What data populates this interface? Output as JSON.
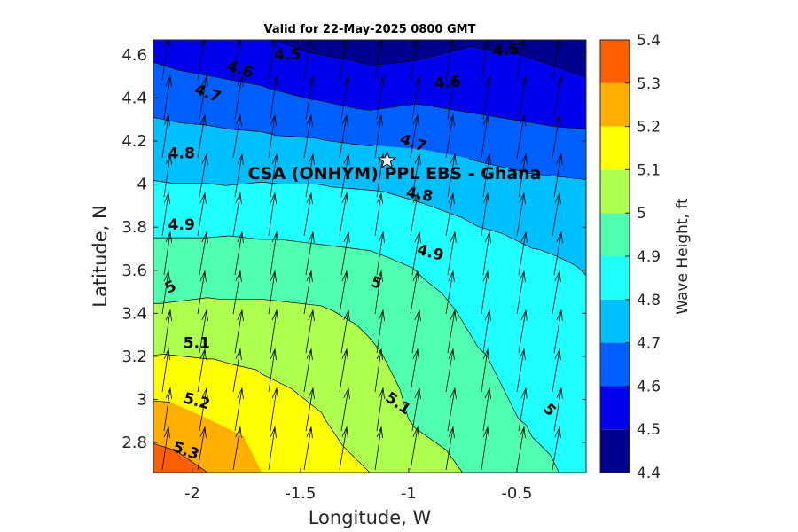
{
  "chart_data": {
    "type": "contour",
    "title": "Valid for 22-May-2025 0800 GMT",
    "xlabel": "Longitude, W",
    "ylabel": "Latitude, N",
    "xlim": [
      -2.18,
      -0.18
    ],
    "ylim": [
      2.66,
      4.67
    ],
    "xticks": [
      -2,
      -1.5,
      -1,
      -0.5
    ],
    "xtick_labels": [
      "-2",
      "-1.5",
      "-1",
      "-0.5"
    ],
    "yticks": [
      2.8,
      3,
      3.2,
      3.4,
      3.6,
      3.8,
      4,
      4.2,
      4.4,
      4.6
    ],
    "ytick_labels": [
      "2.8",
      "3",
      "3.2",
      "3.4",
      "3.6",
      "3.8",
      "4",
      "4.2",
      "4.4",
      "4.6"
    ],
    "colorbar": {
      "label": "Wave Height, ft",
      "range": [
        4.4,
        5.4
      ],
      "ticks": [
        4.4,
        4.5,
        4.6,
        4.7,
        4.8,
        4.9,
        5,
        5.1,
        5.2,
        5.3,
        5.4
      ],
      "tick_labels": [
        "4.4",
        "4.5",
        "4.6",
        "4.7",
        "4.8",
        "4.9",
        "5",
        "5.1",
        "5.2",
        "5.3",
        "5.4"
      ],
      "colors": [
        "#00008f",
        "#0000ef",
        "#005fff",
        "#00bfff",
        "#1fffff",
        "#4fffaf",
        "#afff4f",
        "#ffff00",
        "#ffaf00",
        "#ff5f00"
      ]
    },
    "grid_lon": [
      -2.18,
      -1.93,
      -1.68,
      -1.43,
      -1.18,
      -0.93,
      -0.68,
      -0.43,
      -0.18
    ],
    "grid_lat": [
      2.66,
      2.91,
      3.16,
      3.41,
      3.66,
      3.91,
      4.16,
      4.41,
      4.67
    ],
    "wave_height": [
      [
        5.37,
        5.3,
        5.2,
        5.15,
        5.1,
        5.05,
        4.98,
        4.92,
        4.88
      ],
      [
        5.24,
        5.2,
        5.15,
        5.11,
        5.05,
        4.98,
        4.93,
        4.89,
        4.86
      ],
      [
        5.12,
        5.11,
        5.09,
        5.06,
        5.02,
        4.96,
        4.91,
        4.87,
        4.84
      ],
      [
        5.01,
        5.02,
        5.02,
        5.01,
        4.98,
        4.93,
        4.88,
        4.85,
        4.82
      ],
      [
        4.94,
        4.94,
        4.93,
        4.92,
        4.91,
        4.88,
        4.84,
        4.81,
        4.79
      ],
      [
        4.83,
        4.83,
        4.84,
        4.84,
        4.83,
        4.8,
        4.77,
        4.75,
        4.74
      ],
      [
        4.76,
        4.75,
        4.74,
        4.73,
        4.71,
        4.7,
        4.68,
        4.66,
        4.65
      ],
      [
        4.66,
        4.64,
        4.62,
        4.59,
        4.56,
        4.58,
        4.56,
        4.54,
        4.52
      ],
      [
        4.56,
        4.53,
        4.51,
        4.47,
        4.45,
        4.46,
        4.49,
        4.48,
        4.46
      ]
    ],
    "contour_labels": [
      {
        "text": "4.5",
        "lon": -1.56,
        "lat": 4.6,
        "angle": 0
      },
      {
        "text": "4.5",
        "lon": -0.55,
        "lat": 4.62,
        "angle": -5
      },
      {
        "text": "4.6",
        "lon": -1.78,
        "lat": 4.53,
        "angle": 18
      },
      {
        "text": "4.6",
        "lon": -0.82,
        "lat": 4.47,
        "angle": -5
      },
      {
        "text": "4.7",
        "lon": -1.93,
        "lat": 4.42,
        "angle": 20
      },
      {
        "text": "4.7",
        "lon": -0.98,
        "lat": 4.19,
        "angle": 20
      },
      {
        "text": "4.8",
        "lon": -2.05,
        "lat": 4.14,
        "angle": 0
      },
      {
        "text": "4.8",
        "lon": -0.95,
        "lat": 3.95,
        "angle": 10
      },
      {
        "text": "4.9",
        "lon": -2.05,
        "lat": 3.81,
        "angle": 0
      },
      {
        "text": "4.9",
        "lon": -0.9,
        "lat": 3.68,
        "angle": 15
      },
      {
        "text": "5",
        "lon": -2.1,
        "lat": 3.52,
        "angle": -25
      },
      {
        "text": "5",
        "lon": -1.15,
        "lat": 3.54,
        "angle": 20
      },
      {
        "text": "5",
        "lon": -0.35,
        "lat": 2.95,
        "angle": 45
      },
      {
        "text": "5.1",
        "lon": -1.98,
        "lat": 3.26,
        "angle": 0
      },
      {
        "text": "5.1",
        "lon": -1.05,
        "lat": 2.98,
        "angle": 35
      },
      {
        "text": "5.2",
        "lon": -1.98,
        "lat": 2.99,
        "angle": 15
      },
      {
        "text": "5.3",
        "lon": -2.03,
        "lat": 2.76,
        "angle": 20
      }
    ],
    "site": {
      "label": "CSA (ONHYM) PPL EBS  - Ghana",
      "lon": -1.1,
      "lat": 4.11
    },
    "wave_direction": "towards NNE"
  }
}
